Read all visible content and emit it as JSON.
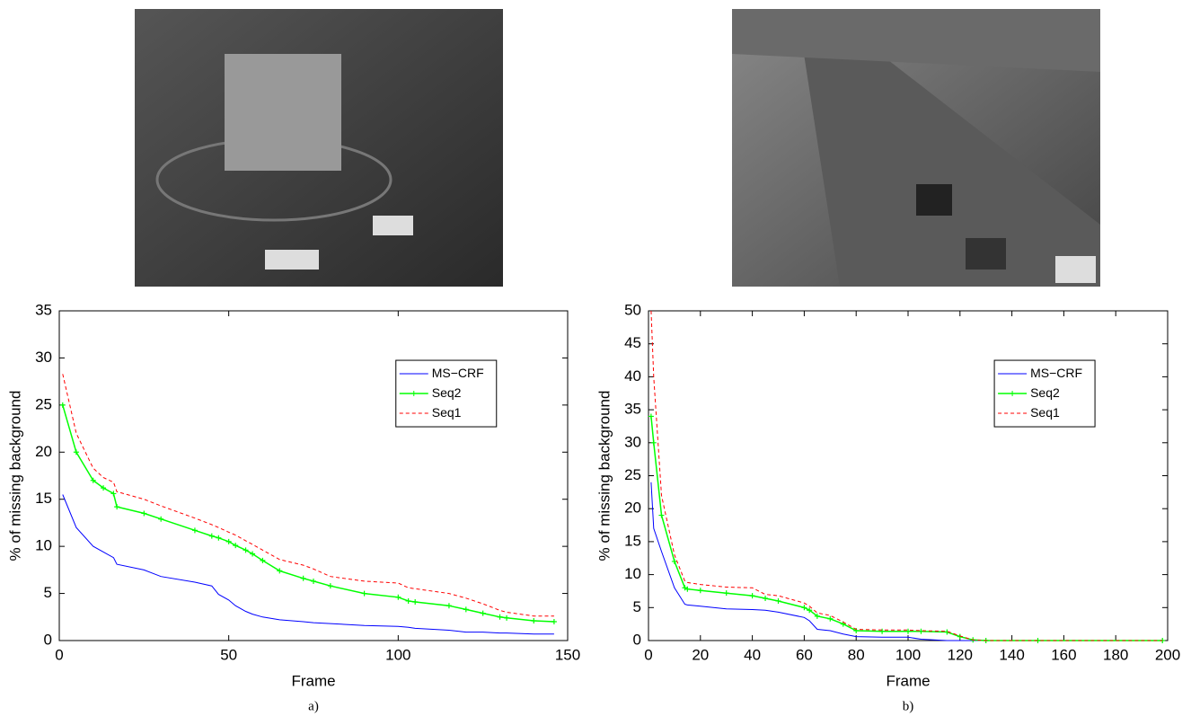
{
  "chart_data": [
    {
      "type": "line",
      "caption": "a)",
      "xlabel": "Frame",
      "ylabel": "% of missing background",
      "xlim": [
        0,
        150
      ],
      "ylim": [
        0,
        35
      ],
      "xticks": [
        0,
        50,
        100,
        150
      ],
      "yticks": [
        0,
        5,
        10,
        15,
        20,
        25,
        30,
        35
      ],
      "grid": false,
      "legend": "upper right",
      "x": [
        1,
        5,
        10,
        13,
        16,
        17,
        25,
        30,
        40,
        45,
        47,
        50,
        52,
        55,
        57,
        60,
        65,
        72,
        75,
        80,
        90,
        100,
        103,
        105,
        115,
        120,
        125,
        130,
        132,
        140,
        146
      ],
      "series": [
        {
          "name": "MS−CRF",
          "color": "#0000ff",
          "style": "solid",
          "values": [
            15.5,
            12,
            10,
            9.4,
            8.8,
            8.1,
            7.5,
            6.8,
            6.2,
            5.8,
            4.9,
            4.3,
            3.7,
            3.1,
            2.8,
            2.5,
            2.2,
            2.0,
            1.9,
            1.8,
            1.6,
            1.5,
            1.4,
            1.3,
            1.1,
            0.9,
            0.9,
            0.8,
            0.8,
            0.7,
            0.7
          ]
        },
        {
          "name": "Seq2",
          "color": "#00ff00",
          "style": "solid",
          "marker": "+",
          "values": [
            25,
            20,
            17,
            16.2,
            15.6,
            14.2,
            13.5,
            12.9,
            11.7,
            11.1,
            10.9,
            10.5,
            10.1,
            9.6,
            9.2,
            8.5,
            7.4,
            6.6,
            6.3,
            5.8,
            5.0,
            4.6,
            4.2,
            4.1,
            3.7,
            3.3,
            2.9,
            2.5,
            2.4,
            2.1,
            2.0
          ]
        },
        {
          "name": "Seq1",
          "color": "#ff0000",
          "style": "dashed",
          "values": [
            28.3,
            22,
            18.3,
            17.3,
            16.8,
            15.8,
            15,
            14.3,
            13,
            12.3,
            12,
            11.5,
            11.2,
            10.6,
            10.2,
            9.6,
            8.6,
            8,
            7.6,
            6.8,
            6.3,
            6.1,
            5.6,
            5.5,
            5,
            4.5,
            3.9,
            3.2,
            3.0,
            2.6,
            2.6
          ]
        }
      ]
    },
    {
      "type": "line",
      "caption": "b)",
      "xlabel": "Frame",
      "ylabel": "% of missing background",
      "xlim": [
        0,
        200
      ],
      "ylim": [
        0,
        50
      ],
      "xticks": [
        0,
        20,
        40,
        60,
        80,
        100,
        120,
        140,
        160,
        180,
        200
      ],
      "yticks": [
        0,
        5,
        10,
        15,
        20,
        25,
        30,
        35,
        40,
        45,
        50
      ],
      "grid": false,
      "legend": "upper right",
      "x": [
        1,
        2,
        5,
        10,
        14,
        15,
        20,
        30,
        40,
        45,
        50,
        60,
        62,
        65,
        70,
        75,
        80,
        90,
        100,
        105,
        115,
        120,
        125,
        130,
        150,
        198
      ],
      "series": [
        {
          "name": "MS−CRF",
          "color": "#0000ff",
          "style": "solid",
          "values": [
            24,
            17,
            13.5,
            8,
            5.5,
            5.4,
            5.2,
            4.8,
            4.7,
            4.6,
            4.3,
            3.5,
            3,
            1.7,
            1.5,
            1.0,
            0.6,
            0.5,
            0.5,
            0.2,
            0,
            0,
            0,
            0,
            0,
            0
          ]
        },
        {
          "name": "Seq2",
          "color": "#00ff00",
          "style": "solid",
          "marker": "+",
          "values": [
            34,
            30,
            19,
            12,
            8,
            7.8,
            7.6,
            7.2,
            6.8,
            6.4,
            6,
            5,
            4.6,
            3.7,
            3.3,
            2.5,
            1.5,
            1.4,
            1.4,
            1.4,
            1.3,
            0.6,
            0.1,
            0,
            0,
            0
          ]
        },
        {
          "name": "Seq1",
          "color": "#ff0000",
          "style": "dashed",
          "values": [
            50,
            40,
            22,
            13,
            9,
            8.8,
            8.5,
            8.1,
            8,
            7,
            6.8,
            5.7,
            5.2,
            4.2,
            3.8,
            2.8,
            1.7,
            1.6,
            1.6,
            1.5,
            1.4,
            0.7,
            0.1,
            0,
            0,
            0
          ]
        }
      ]
    }
  ]
}
